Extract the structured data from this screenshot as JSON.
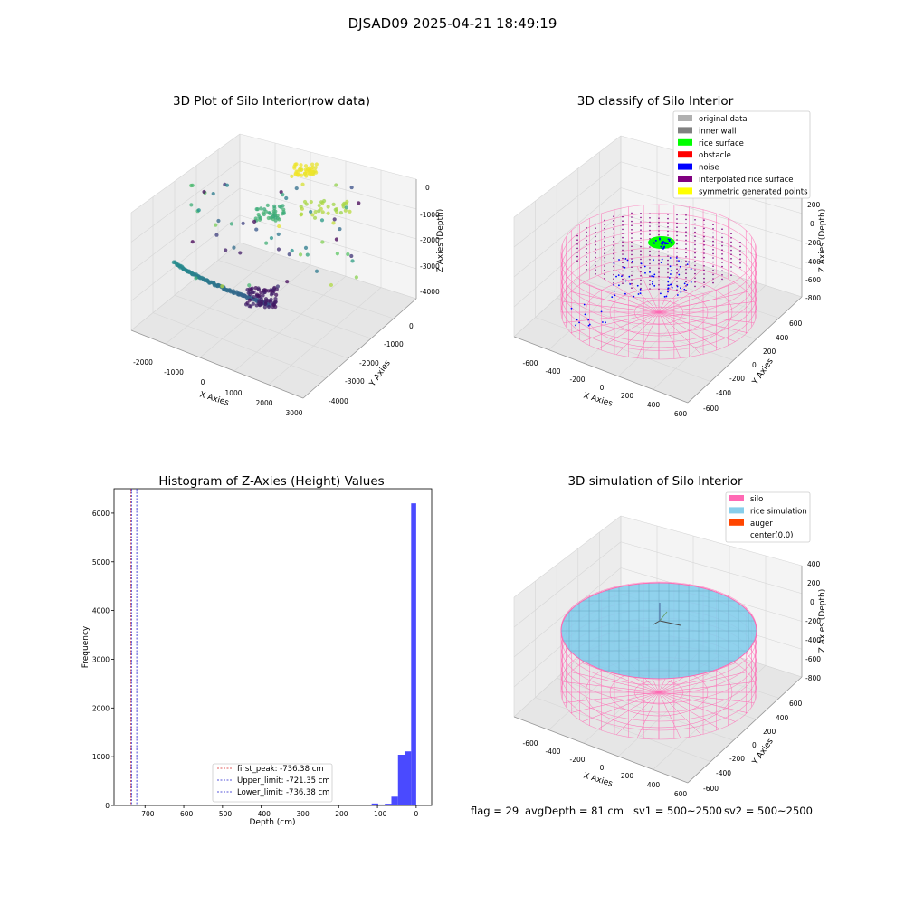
{
  "suptitle": "DJSAD09 2025-04-21 18:49:19",
  "footer": {
    "flag": "flag = 29",
    "avg_depth": "avgDepth = 81 cm",
    "sv1": "sv1 = 500~2500",
    "sv2": "sv2 = 500~2500"
  },
  "colors": {
    "histogram_bar": "#4a4aff",
    "first_peak_line": "#d62728",
    "limit_line": "#1f1fcc",
    "silo_wire": "#ff69b4",
    "rice_simulation": "#87ceeb",
    "rice_surface": "#00ff00",
    "noise": "#0000ff",
    "interpolated": "#800080"
  },
  "chart_data": [
    {
      "type": "scatter",
      "subtype": "3d",
      "title": "3D Plot of Silo Interior(row data)",
      "xlabel": "X Axies",
      "ylabel": "Y Axies",
      "zlabel": "Z Axies (Depth)",
      "xticks": [
        "-2000",
        "-1000",
        "0",
        "1000",
        "2000",
        "3000"
      ],
      "yticks": [
        "0",
        "-1000",
        "-2000",
        "-3000",
        "-4000"
      ],
      "zticks": [
        "0",
        "-1000",
        "-2000",
        "-3000",
        "-4000"
      ],
      "colormap": "viridis"
    },
    {
      "type": "scatter",
      "subtype": "3d",
      "title": "3D classify of Silo Interior",
      "xlabel": "X Axies",
      "ylabel": "Y Axies",
      "zlabel": "Z Axies (Depth)",
      "xticks": [
        "-600",
        "-400",
        "-200",
        "0",
        "200",
        "400",
        "600"
      ],
      "yticks": [
        "600",
        "400",
        "200",
        "0",
        "-200",
        "-400",
        "-600"
      ],
      "zticks": [
        "200",
        "0",
        "-200",
        "-400",
        "-600",
        "-800"
      ],
      "legend": [
        {
          "name": "original data",
          "color": "#b0b0b0"
        },
        {
          "name": "inner wall",
          "color": "#808080"
        },
        {
          "name": "rice surface",
          "color": "#00ff00"
        },
        {
          "name": "obstacle",
          "color": "#ff0000"
        },
        {
          "name": "noise",
          "color": "#0000ff"
        },
        {
          "name": "interpolated rice surface",
          "color": "#800080"
        },
        {
          "name": "symmetric generated points",
          "color": "#ffff00"
        }
      ],
      "legend_position": "top-right"
    },
    {
      "type": "bar",
      "subtype": "histogram",
      "title": "Histogram of Z-Axies (Height) Values",
      "xlabel": "Depth (cm)",
      "ylabel": "Frequency",
      "xlim": [
        -780,
        40
      ],
      "ylim": [
        0,
        6500
      ],
      "xticks": [
        -700,
        -600,
        -500,
        -400,
        -300,
        -200,
        -100,
        0
      ],
      "yticks": [
        0,
        1000,
        2000,
        3000,
        4000,
        5000,
        6000
      ],
      "bins": [
        {
          "x0": -420,
          "x1": -330,
          "count": 8
        },
        {
          "x0": -255,
          "x1": -238,
          "count": 10
        },
        {
          "x0": -180,
          "x1": -115,
          "count": 15
        },
        {
          "x0": -115,
          "x1": -98,
          "count": 40
        },
        {
          "x0": -98,
          "x1": -81,
          "count": 20
        },
        {
          "x0": -81,
          "x1": -64,
          "count": 35
        },
        {
          "x0": -64,
          "x1": -47,
          "count": 180
        },
        {
          "x0": -47,
          "x1": -30,
          "count": 1040
        },
        {
          "x0": -30,
          "x1": -13,
          "count": 1110
        },
        {
          "x0": -13,
          "x1": 0,
          "count": 6200
        }
      ],
      "vlines": [
        {
          "name": "first_peak: -736.38 cm",
          "x": -736.38,
          "color": "#d62728"
        },
        {
          "name": "Upper_limit: -721.35 cm",
          "x": -721.35,
          "color": "#1f1fcc"
        },
        {
          "name": "Lower_limit: -736.38 cm",
          "x": -736.38,
          "color": "#1f1fcc"
        }
      ],
      "legend_position": "bottom-center"
    },
    {
      "type": "scatter",
      "subtype": "3d",
      "title": "3D simulation of Silo Interior",
      "xlabel": "X Axies",
      "ylabel": "Y Axies",
      "zlabel": "Z Axies (Depth)",
      "xticks": [
        "-600",
        "-400",
        "-200",
        "0",
        "200",
        "400",
        "600"
      ],
      "yticks": [
        "600",
        "400",
        "200",
        "0",
        "-200",
        "-400",
        "-600"
      ],
      "zticks": [
        "400",
        "200",
        "0",
        "-200",
        "-400",
        "-600",
        "-800"
      ],
      "legend": [
        {
          "name": "silo",
          "color": "#ff69b4"
        },
        {
          "name": "rice simulation",
          "color": "#87ceeb"
        },
        {
          "name": "auger",
          "color": "#ff4500"
        },
        {
          "name": "center(0,0)",
          "color": "#ffffff"
        }
      ],
      "legend_position": "top-right"
    }
  ]
}
